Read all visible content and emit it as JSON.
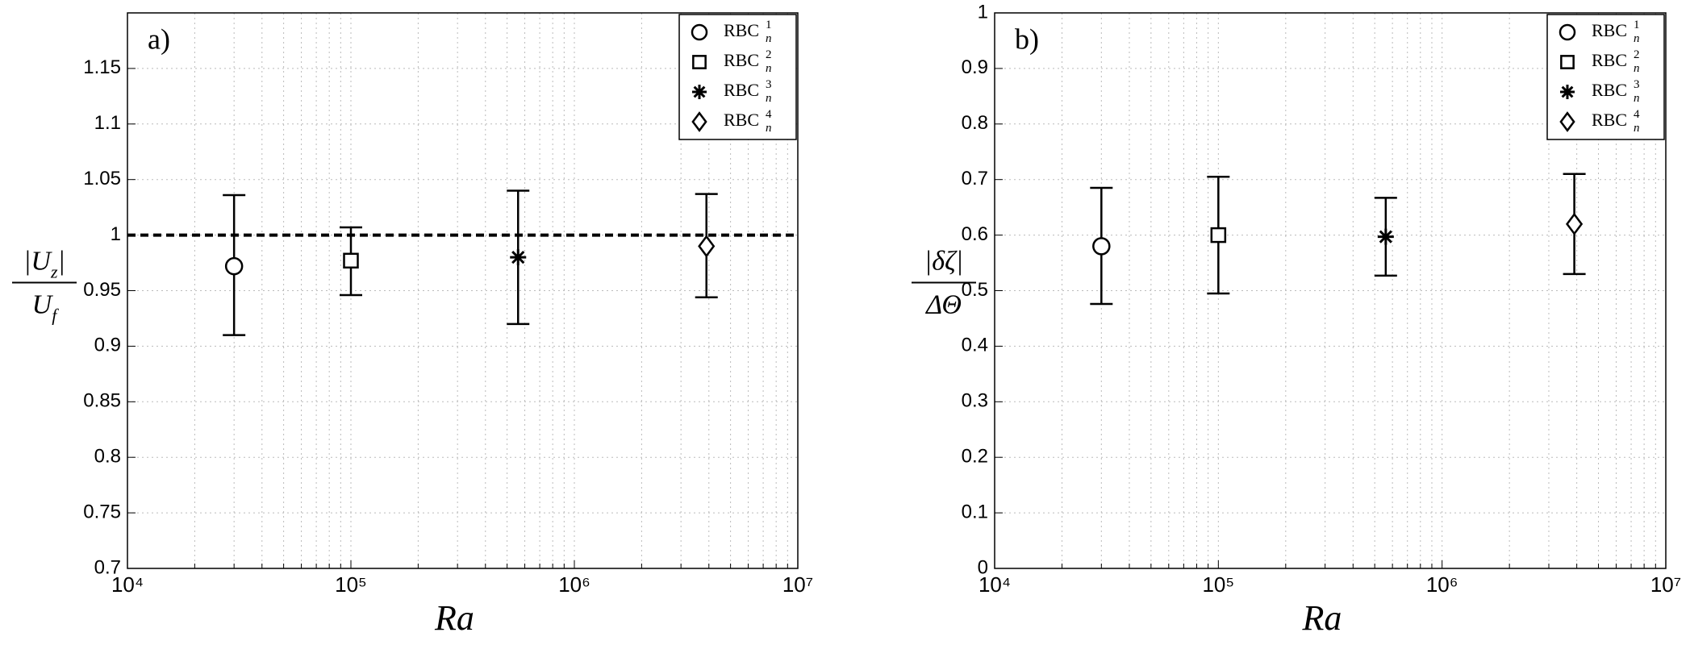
{
  "chart_data": [
    {
      "type": "scatter",
      "panel_label": "a)",
      "xlabel": "Ra",
      "ylabel": {
        "numerator": [
          {
            "text": "|U"
          },
          {
            "text": "z",
            "sub": true
          },
          {
            "text": "|"
          }
        ],
        "denominator": [
          {
            "text": "U"
          },
          {
            "text": "f",
            "sub": true
          }
        ]
      },
      "xscale": "log",
      "xlim": [
        10000,
        10000000
      ],
      "xticks": [
        {
          "value": 10000,
          "label": "10⁴"
        },
        {
          "value": 100000,
          "label": "10⁵"
        },
        {
          "value": 1000000,
          "label": "10⁶"
        },
        {
          "value": 10000000,
          "label": "10⁷"
        }
      ],
      "xminorticks": [
        20000,
        30000,
        40000,
        50000,
        60000,
        70000,
        80000,
        90000,
        200000,
        300000,
        400000,
        500000,
        600000,
        700000,
        800000,
        900000,
        2000000,
        3000000,
        4000000,
        5000000,
        6000000,
        7000000,
        8000000,
        9000000
      ],
      "ylim": [
        0.7,
        1.2
      ],
      "yticks": [
        0.7,
        0.75,
        0.8,
        0.85,
        0.9,
        0.95,
        1,
        1.05,
        1.1,
        1.15
      ],
      "grid": true,
      "hline": 1,
      "legend": "upper right",
      "series": [
        {
          "name": "RBC",
          "sup": "1",
          "sub": "n",
          "marker": "circle",
          "color": "#000000",
          "x": [
            30000
          ],
          "values": [
            0.972
          ],
          "lower": [
            0.91
          ],
          "upper": [
            1.036
          ]
        },
        {
          "name": "RBC",
          "sup": "2",
          "sub": "n",
          "marker": "square",
          "color": "#000000",
          "x": [
            100000
          ],
          "values": [
            0.977
          ],
          "lower": [
            0.946
          ],
          "upper": [
            1.007
          ]
        },
        {
          "name": "RBC",
          "sup": "3",
          "sub": "n",
          "marker": "asterisk",
          "color": "#000000",
          "x": [
            560000
          ],
          "values": [
            0.98
          ],
          "lower": [
            0.92
          ],
          "upper": [
            1.04
          ]
        },
        {
          "name": "RBC",
          "sup": "4",
          "sub": "n",
          "marker": "diamond",
          "color": "#000000",
          "x": [
            3900000
          ],
          "values": [
            0.99
          ],
          "lower": [
            0.944
          ],
          "upper": [
            1.037
          ]
        }
      ]
    },
    {
      "type": "scatter",
      "panel_label": "b)",
      "xlabel": "Ra",
      "ylabel": {
        "numerator": [
          {
            "text": "|δζ|"
          }
        ],
        "denominator": [
          {
            "text": "ΔΘ"
          }
        ]
      },
      "xscale": "log",
      "xlim": [
        10000,
        10000000
      ],
      "xticks": [
        {
          "value": 10000,
          "label": "10⁴"
        },
        {
          "value": 100000,
          "label": "10⁵"
        },
        {
          "value": 1000000,
          "label": "10⁶"
        },
        {
          "value": 10000000,
          "label": "10⁷"
        }
      ],
      "xminorticks": [
        20000,
        30000,
        40000,
        50000,
        60000,
        70000,
        80000,
        90000,
        200000,
        300000,
        400000,
        500000,
        600000,
        700000,
        800000,
        900000,
        2000000,
        3000000,
        4000000,
        5000000,
        6000000,
        7000000,
        8000000,
        9000000
      ],
      "ylim": [
        0,
        1
      ],
      "yticks": [
        0,
        0.1,
        0.2,
        0.3,
        0.4,
        0.5,
        0.6,
        0.7,
        0.8,
        0.9,
        1
      ],
      "grid": true,
      "legend": "upper right",
      "series": [
        {
          "name": "RBC",
          "sup": "1",
          "sub": "n",
          "marker": "circle",
          "color": "#000000",
          "x": [
            30000
          ],
          "values": [
            0.58
          ],
          "lower": [
            0.476
          ],
          "upper": [
            0.685
          ]
        },
        {
          "name": "RBC",
          "sup": "2",
          "sub": "n",
          "marker": "square",
          "color": "#000000",
          "x": [
            100000
          ],
          "values": [
            0.6
          ],
          "lower": [
            0.495
          ],
          "upper": [
            0.705
          ]
        },
        {
          "name": "RBC",
          "sup": "3",
          "sub": "n",
          "marker": "asterisk",
          "color": "#000000",
          "x": [
            560000
          ],
          "values": [
            0.597
          ],
          "lower": [
            0.527
          ],
          "upper": [
            0.667
          ]
        },
        {
          "name": "RBC",
          "sup": "4",
          "sub": "n",
          "marker": "diamond",
          "color": "#000000",
          "x": [
            3900000
          ],
          "values": [
            0.62
          ],
          "lower": [
            0.53
          ],
          "upper": [
            0.71
          ]
        }
      ]
    }
  ]
}
